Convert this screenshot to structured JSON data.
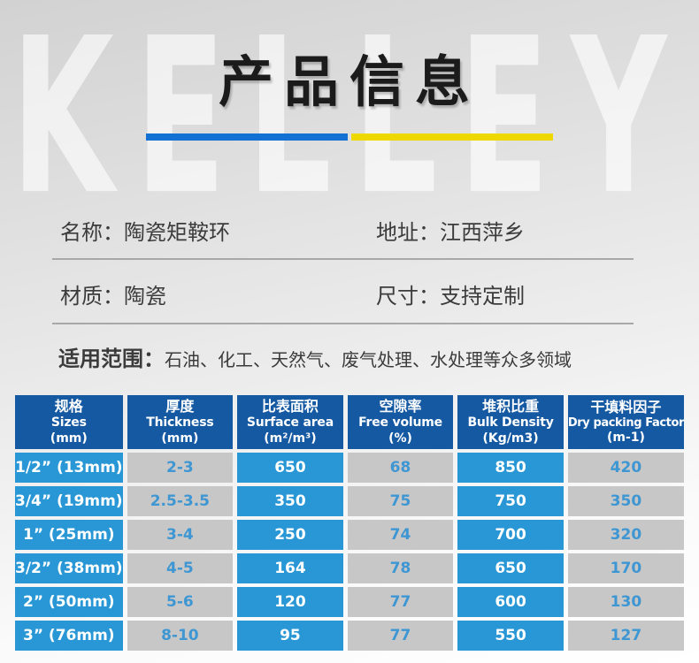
{
  "hero": {
    "watermark": "KELLEY",
    "title": "产品信息",
    "underline_blue": "#1371d3",
    "underline_yellow": "#eed802"
  },
  "info": {
    "fields": [
      {
        "text": "名称：陶瓷矩鞍环"
      },
      {
        "text": "地址：江西萍乡"
      },
      {
        "text": "材质：陶瓷"
      },
      {
        "text": "尺寸：支持定制"
      }
    ],
    "scope_label": "适用范围：",
    "scope_value": "石油、化工、天然气、废气处理、水处理等众多领域"
  },
  "table": {
    "headers": [
      {
        "cn": "规格",
        "en": "Sizes",
        "unit": "(mm)"
      },
      {
        "cn": "厚度",
        "en": "Thickness",
        "unit": "(mm)"
      },
      {
        "cn": "比表面积",
        "en": "Surface area",
        "unit": "(m²/m³)"
      },
      {
        "cn": "空隙率",
        "en": "Free volume",
        "unit": "(%)"
      },
      {
        "cn": "堆积比重",
        "en": "Bulk Density",
        "unit": "(Kg/m3)"
      },
      {
        "cn": "干填料因子",
        "en": "Dry packing Factor",
        "unit": "(m-1)"
      }
    ],
    "rows": [
      [
        "1/2” (13mm)",
        "2-3",
        "650",
        "68",
        "850",
        "420"
      ],
      [
        "3/4” (19mm)",
        "2.5-3.5",
        "350",
        "75",
        "750",
        "350"
      ],
      [
        "1” (25mm)",
        "3-4",
        "250",
        "74",
        "700",
        "320"
      ],
      [
        "3/2” (38mm)",
        "4-5",
        "164",
        "78",
        "650",
        "170"
      ],
      [
        "2” (50mm)",
        "5-6",
        "120",
        "77",
        "600",
        "130"
      ],
      [
        "3” (76mm)",
        "8-10",
        "95",
        "77",
        "550",
        "127"
      ]
    ],
    "colors": {
      "header_bg": "#1559a3",
      "cell_blue_bg": "#2997d5",
      "cell_gray_bg": "#c7c7c7",
      "cell_blue_text": "#3e96d3"
    }
  }
}
